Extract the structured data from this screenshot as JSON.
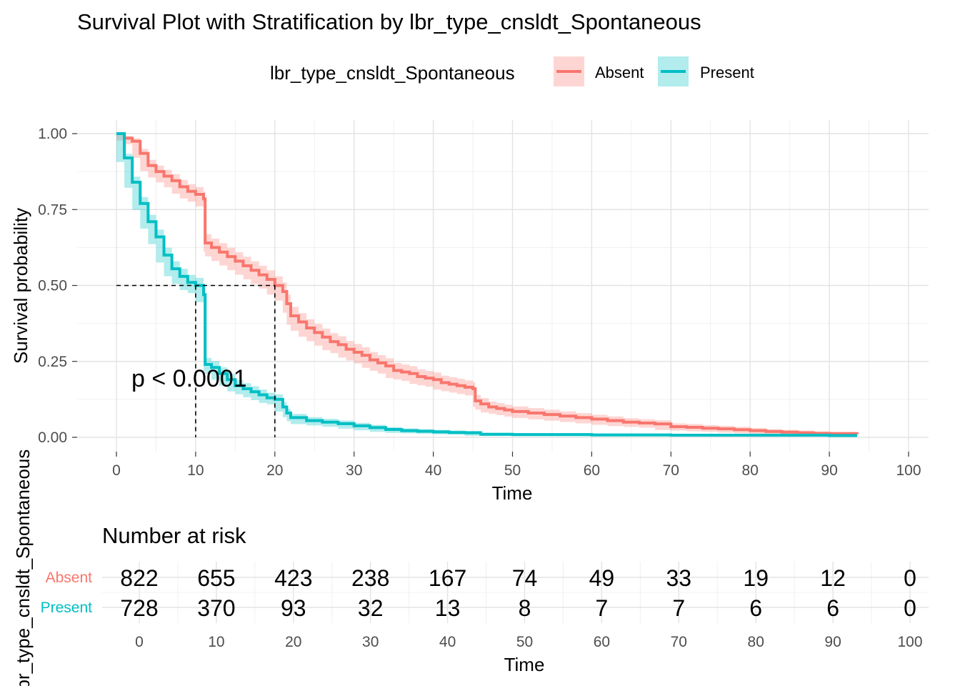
{
  "chart_data": {
    "type": "line",
    "title": "Survival Plot with Stratification by lbr_type_cnsldt_Spontaneous",
    "legend": {
      "title": "lbr_type_cnsldt_Spontaneous",
      "placement": "top",
      "entries": [
        "Absent",
        "Present"
      ]
    },
    "xlabel": "Time",
    "ylabel": "Survival probability",
    "xlim": [
      0,
      100
    ],
    "ylim": [
      0,
      1
    ],
    "x_ticks": [
      "0",
      "10",
      "20",
      "30",
      "40",
      "50",
      "60",
      "70",
      "80",
      "90",
      "100"
    ],
    "y_ticks": [
      "0.00",
      "0.25",
      "0.50",
      "0.75",
      "1.00"
    ],
    "grid": true,
    "pvalue_label": "p < 0.0001",
    "median_lines": {
      "y": 0.5,
      "x": [
        10,
        20
      ]
    },
    "series": [
      {
        "name": "Absent",
        "color": "#F8766D",
        "band_color": "#F8766D",
        "steps": [
          [
            0,
            1.0
          ],
          [
            1,
            0.985
          ],
          [
            2,
            0.975
          ],
          [
            3,
            0.935
          ],
          [
            4,
            0.895
          ],
          [
            5,
            0.875
          ],
          [
            6,
            0.86
          ],
          [
            7,
            0.845
          ],
          [
            8,
            0.825
          ],
          [
            9,
            0.81
          ],
          [
            10,
            0.8
          ],
          [
            11,
            0.785
          ],
          [
            11.2,
            0.64
          ],
          [
            12,
            0.625
          ],
          [
            13,
            0.61
          ],
          [
            14,
            0.595
          ],
          [
            15,
            0.58
          ],
          [
            16,
            0.565
          ],
          [
            17,
            0.55
          ],
          [
            18,
            0.535
          ],
          [
            19,
            0.52
          ],
          [
            20,
            0.5
          ],
          [
            21,
            0.48
          ],
          [
            21.5,
            0.44
          ],
          [
            22,
            0.4
          ],
          [
            23,
            0.38
          ],
          [
            24,
            0.36
          ],
          [
            25,
            0.345
          ],
          [
            26,
            0.33
          ],
          [
            27,
            0.315
          ],
          [
            28,
            0.305
          ],
          [
            29,
            0.29
          ],
          [
            30,
            0.28
          ],
          [
            31,
            0.27
          ],
          [
            32,
            0.255
          ],
          [
            33,
            0.245
          ],
          [
            34,
            0.235
          ],
          [
            35,
            0.22
          ],
          [
            36,
            0.215
          ],
          [
            37,
            0.21
          ],
          [
            38,
            0.2
          ],
          [
            39,
            0.195
          ],
          [
            40,
            0.19
          ],
          [
            41,
            0.18
          ],
          [
            42,
            0.175
          ],
          [
            43,
            0.17
          ],
          [
            44,
            0.165
          ],
          [
            45,
            0.16
          ],
          [
            45.3,
            0.12
          ],
          [
            46,
            0.11
          ],
          [
            47,
            0.1
          ],
          [
            48,
            0.095
          ],
          [
            49,
            0.09
          ],
          [
            50,
            0.085
          ],
          [
            52,
            0.08
          ],
          [
            54,
            0.075
          ],
          [
            56,
            0.07
          ],
          [
            58,
            0.065
          ],
          [
            60,
            0.06
          ],
          [
            62,
            0.055
          ],
          [
            64,
            0.05
          ],
          [
            66,
            0.047
          ],
          [
            68,
            0.044
          ],
          [
            70,
            0.035
          ],
          [
            72,
            0.033
          ],
          [
            74,
            0.03
          ],
          [
            76,
            0.028
          ],
          [
            78,
            0.025
          ],
          [
            80,
            0.022
          ],
          [
            82,
            0.019
          ],
          [
            84,
            0.017
          ],
          [
            86,
            0.015
          ],
          [
            88,
            0.013
          ],
          [
            90,
            0.012
          ],
          [
            93.5,
            0.01
          ]
        ]
      },
      {
        "name": "Present",
        "color": "#00BFC4",
        "band_color": "#00BFC4",
        "steps": [
          [
            0,
            1.0
          ],
          [
            1,
            0.92
          ],
          [
            2,
            0.84
          ],
          [
            3,
            0.77
          ],
          [
            4,
            0.71
          ],
          [
            5,
            0.66
          ],
          [
            6,
            0.6
          ],
          [
            7,
            0.555
          ],
          [
            8,
            0.53
          ],
          [
            9,
            0.51
          ],
          [
            10,
            0.5
          ],
          [
            11,
            0.47
          ],
          [
            11.2,
            0.24
          ],
          [
            12,
            0.23
          ],
          [
            13,
            0.21
          ],
          [
            14,
            0.19
          ],
          [
            15,
            0.17
          ],
          [
            16,
            0.16
          ],
          [
            17,
            0.15
          ],
          [
            18,
            0.14
          ],
          [
            19,
            0.13
          ],
          [
            20,
            0.125
          ],
          [
            21,
            0.1
          ],
          [
            21.5,
            0.08
          ],
          [
            22,
            0.065
          ],
          [
            24,
            0.055
          ],
          [
            26,
            0.05
          ],
          [
            28,
            0.045
          ],
          [
            30,
            0.038
          ],
          [
            32,
            0.032
          ],
          [
            34,
            0.026
          ],
          [
            36,
            0.022
          ],
          [
            38,
            0.02
          ],
          [
            40,
            0.018
          ],
          [
            42,
            0.016
          ],
          [
            44,
            0.015
          ],
          [
            46,
            0.01
          ],
          [
            50,
            0.009
          ],
          [
            60,
            0.008
          ],
          [
            70,
            0.007
          ],
          [
            80,
            0.007
          ],
          [
            90,
            0.006
          ],
          [
            93.5,
            0.006
          ]
        ]
      }
    ],
    "risk_table": {
      "title": "Number at risk",
      "ylabel": "lbr_type_cnsldt_Spontaneous",
      "xlabel": "Time",
      "times": [
        "0",
        "10",
        "20",
        "30",
        "40",
        "50",
        "60",
        "70",
        "80",
        "90",
        "100"
      ],
      "rows": [
        {
          "name": "Absent",
          "color": "#F8766D",
          "values": [
            "822",
            "655",
            "423",
            "238",
            "167",
            "74",
            "49",
            "33",
            "19",
            "12",
            "0"
          ]
        },
        {
          "name": "Present",
          "color": "#00BFC4",
          "values": [
            "728",
            "370",
            "93",
            "32",
            "13",
            "8",
            "7",
            "7",
            "6",
            "6",
            "0"
          ]
        }
      ]
    }
  }
}
